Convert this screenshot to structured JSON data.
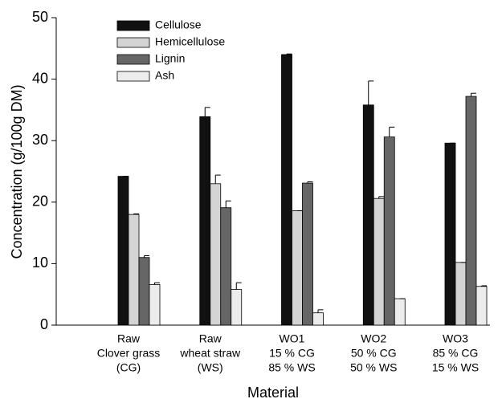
{
  "chart_data": {
    "type": "bar",
    "ylabel": "Concentration (g/100g DM)",
    "xlabel": "Material",
    "categories": [
      [
        "Raw",
        "Clover grass",
        "(CG)"
      ],
      [
        "Raw",
        "wheat straw",
        "(WS)"
      ],
      [
        "WO1",
        "15 % CG",
        "85 % WS"
      ],
      [
        "WO2",
        "50 % CG",
        "50 % WS"
      ],
      [
        "WO3",
        "85 % CG",
        "15 % WS"
      ]
    ],
    "series": [
      {
        "name": "Cellulose",
        "color": "#111111",
        "values": [
          24.2,
          33.9,
          44.0,
          35.8,
          29.6
        ],
        "errors": [
          0,
          1.5,
          0.1,
          3.9,
          0
        ]
      },
      {
        "name": "Hemicellulose",
        "color": "#d4d4d4",
        "values": [
          18.0,
          23.0,
          18.6,
          20.6,
          10.2
        ],
        "errors": [
          0.1,
          1.4,
          0,
          0.3,
          0
        ]
      },
      {
        "name": "Lignin",
        "color": "#666666",
        "values": [
          11.0,
          19.1,
          23.1,
          30.6,
          37.2
        ],
        "errors": [
          0.3,
          1.1,
          0.2,
          1.6,
          0.5
        ]
      },
      {
        "name": "Ash",
        "color": "#ececec",
        "values": [
          6.6,
          5.8,
          2.0,
          4.3,
          6.3
        ],
        "errors": [
          0.3,
          1.1,
          0.5,
          0,
          0.1
        ]
      }
    ],
    "ylim": [
      0,
      50
    ],
    "yticks": [
      0,
      10,
      20,
      30,
      40,
      50
    ],
    "legend": "upper-left"
  }
}
